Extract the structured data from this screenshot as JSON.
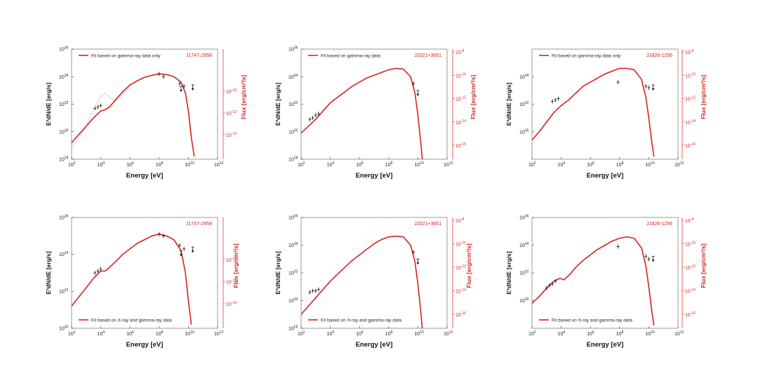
{
  "colors": {
    "fit": "#d8211d",
    "data": "#111111",
    "dashed": "#aaaaaa",
    "axis": "#222222",
    "right_axis": "#d8211d"
  },
  "labels": {
    "xlabel": "Energy [eV]",
    "ylabel": "E²dN/dE [erg/s]",
    "ylabel_right": "Flux [erg/cm²/s]"
  },
  "chart_data": [
    {
      "type": "line",
      "source": "J1747-2958",
      "legend": "Fit based on gamma-ray data only",
      "legend_position": "top",
      "xlim": [
        2,
        12
      ],
      "ylim": [
        28,
        36
      ],
      "left_ticks": [
        28,
        30,
        32,
        34,
        36
      ],
      "right_ticks": [
        -14,
        -12,
        -10
      ],
      "right_offset": 44,
      "fit": [
        [
          2.0,
          29.2
        ],
        [
          2.5,
          29.8
        ],
        [
          3.0,
          30.4
        ],
        [
          3.5,
          31.0
        ],
        [
          4.0,
          31.5
        ],
        [
          4.3,
          31.6
        ],
        [
          4.6,
          31.8
        ],
        [
          5.0,
          32.3
        ],
        [
          5.5,
          32.9
        ],
        [
          6.0,
          33.4
        ],
        [
          6.5,
          33.7
        ],
        [
          7.0,
          33.95
        ],
        [
          7.5,
          34.1
        ],
        [
          8.0,
          34.2
        ],
        [
          8.5,
          34.15
        ],
        [
          9.0,
          34.0
        ],
        [
          9.5,
          33.6
        ],
        [
          9.8,
          32.8
        ],
        [
          10.0,
          31.5
        ],
        [
          10.2,
          29.6
        ],
        [
          10.4,
          28.2
        ]
      ],
      "dashed": [
        [
          2.0,
          28.8
        ],
        [
          2.5,
          29.5
        ],
        [
          3.0,
          30.4
        ],
        [
          3.5,
          31.6
        ],
        [
          4.0,
          32.6
        ],
        [
          4.3,
          32.8
        ],
        [
          4.6,
          32.5
        ],
        [
          5.0,
          32.2
        ],
        [
          5.5,
          32.7
        ],
        [
          6.0,
          33.3
        ]
      ],
      "data_points": [
        [
          3.6,
          31.7
        ],
        [
          3.8,
          31.8
        ],
        [
          4.0,
          31.9
        ],
        [
          8.0,
          34.2
        ],
        [
          8.3,
          34.0
        ],
        [
          9.4,
          33.5
        ],
        [
          9.7,
          33.3
        ]
      ],
      "upper_limits": [
        [
          9.5,
          33.3
        ],
        [
          10.3,
          33.4
        ]
      ]
    },
    {
      "type": "line",
      "source": "J2021+3651",
      "legend": "Fit based on gamma-ray data",
      "legend_position": "top",
      "xlim": [
        2,
        12
      ],
      "ylim": [
        28,
        36
      ],
      "left_ticks": [
        28,
        30,
        32,
        34,
        36
      ],
      "right_ticks": [
        -16,
        -14,
        -12,
        -10,
        -8
      ],
      "right_offset": 44,
      "fit": [
        [
          2.0,
          29.9
        ],
        [
          2.5,
          30.4
        ],
        [
          3.0,
          30.9
        ],
        [
          3.5,
          31.5
        ],
        [
          4.0,
          32.1
        ],
        [
          4.5,
          32.5
        ],
        [
          5.0,
          32.9
        ],
        [
          5.5,
          33.3
        ],
        [
          6.0,
          33.6
        ],
        [
          6.5,
          33.9
        ],
        [
          7.0,
          34.1
        ],
        [
          7.5,
          34.3
        ],
        [
          8.0,
          34.5
        ],
        [
          8.5,
          34.6
        ],
        [
          9.0,
          34.55
        ],
        [
          9.5,
          34.0
        ],
        [
          9.8,
          32.8
        ],
        [
          10.0,
          31.2
        ],
        [
          10.2,
          29.2
        ],
        [
          10.3,
          28.0
        ]
      ],
      "dashed": [],
      "data_points": [
        [
          2.6,
          30.9
        ],
        [
          2.8,
          31.0
        ],
        [
          3.0,
          31.2
        ],
        [
          3.2,
          31.3
        ],
        [
          9.7,
          33.5
        ]
      ],
      "upper_limits": [
        [
          10.0,
          33.0
        ]
      ]
    },
    {
      "type": "line",
      "source": "J1826-1256",
      "legend": "Fit based on gamma-ray data only",
      "legend_position": "top",
      "xlim": [
        2,
        12
      ],
      "ylim": [
        28,
        36
      ],
      "left_ticks": [
        30,
        32,
        34
      ],
      "right_ticks": [
        -16,
        -14,
        -12,
        -10,
        -8
      ],
      "right_offset": 45,
      "fit": [
        [
          2.0,
          29.4
        ],
        [
          2.5,
          30.0
        ],
        [
          3.0,
          30.7
        ],
        [
          3.5,
          31.4
        ],
        [
          4.0,
          31.9
        ],
        [
          4.5,
          32.3
        ],
        [
          5.0,
          32.8
        ],
        [
          5.5,
          33.3
        ],
        [
          6.0,
          33.6
        ],
        [
          6.5,
          33.9
        ],
        [
          7.0,
          34.2
        ],
        [
          7.5,
          34.4
        ],
        [
          8.0,
          34.6
        ],
        [
          8.5,
          34.6
        ],
        [
          9.0,
          34.5
        ],
        [
          9.5,
          33.8
        ],
        [
          9.8,
          32.5
        ],
        [
          10.0,
          31.0
        ],
        [
          10.2,
          29.3
        ],
        [
          10.35,
          28.2
        ]
      ],
      "dashed": [],
      "data_points": [
        [
          3.4,
          32.2
        ],
        [
          3.6,
          32.3
        ],
        [
          3.8,
          32.4
        ],
        [
          7.9,
          33.6
        ],
        [
          9.8,
          33.3
        ],
        [
          10.0,
          33.2
        ]
      ],
      "upper_limits": [
        [
          10.3,
          33.4
        ]
      ]
    },
    {
      "type": "line",
      "source": "J1747-2958",
      "legend": "Fit based on X-ray and gamma-ray data",
      "legend_position": "bottom",
      "xlim": [
        2,
        12
      ],
      "ylim": [
        30,
        36
      ],
      "left_ticks": [
        30,
        32,
        34,
        36
      ],
      "right_ticks": [
        -14,
        -12,
        -10
      ],
      "right_offset": 33,
      "fit": [
        [
          2.0,
          31.2
        ],
        [
          2.5,
          31.7
        ],
        [
          3.0,
          32.2
        ],
        [
          3.5,
          32.7
        ],
        [
          4.0,
          33.1
        ],
        [
          4.3,
          33.1
        ],
        [
          4.6,
          33.3
        ],
        [
          5.0,
          33.6
        ],
        [
          5.5,
          34.0
        ],
        [
          6.0,
          34.3
        ],
        [
          6.5,
          34.6
        ],
        [
          7.0,
          34.8
        ],
        [
          7.5,
          35.0
        ],
        [
          8.0,
          35.1
        ],
        [
          8.5,
          35.0
        ],
        [
          9.0,
          34.8
        ],
        [
          9.5,
          34.2
        ],
        [
          9.8,
          33.0
        ],
        [
          10.0,
          31.5
        ],
        [
          10.2,
          30.2
        ]
      ],
      "dashed": [],
      "data_points": [
        [
          3.6,
          33.0
        ],
        [
          3.8,
          33.1
        ],
        [
          4.0,
          33.2
        ],
        [
          8.0,
          35.1
        ],
        [
          8.3,
          35.0
        ],
        [
          9.4,
          34.5
        ],
        [
          9.7,
          34.3
        ]
      ],
      "upper_limits": [
        [
          9.5,
          34.2
        ],
        [
          10.3,
          34.4
        ]
      ]
    },
    {
      "type": "line",
      "source": "J2021+3651",
      "legend": "Fit based on X-ray and gamma-ray data",
      "legend_position": "bottom",
      "xlim": [
        2,
        12
      ],
      "ylim": [
        28,
        36
      ],
      "left_ticks": [
        28,
        30,
        32,
        34,
        36
      ],
      "right_ticks": [
        -16,
        -14,
        -12,
        -10,
        -8
      ],
      "right_offset": 38,
      "fit": [
        [
          2.0,
          29.0
        ],
        [
          2.5,
          29.6
        ],
        [
          3.0,
          30.2
        ],
        [
          3.5,
          30.8
        ],
        [
          4.0,
          31.4
        ],
        [
          4.5,
          31.9
        ],
        [
          5.0,
          32.4
        ],
        [
          5.5,
          32.9
        ],
        [
          6.0,
          33.3
        ],
        [
          6.5,
          33.7
        ],
        [
          7.0,
          34.1
        ],
        [
          7.5,
          34.4
        ],
        [
          8.0,
          34.6
        ],
        [
          8.5,
          34.65
        ],
        [
          9.0,
          34.6
        ],
        [
          9.5,
          34.0
        ],
        [
          9.8,
          32.8
        ],
        [
          10.0,
          31.2
        ],
        [
          10.2,
          29.2
        ],
        [
          10.3,
          28.0
        ]
      ],
      "dashed": [],
      "data_points": [
        [
          2.6,
          30.6
        ],
        [
          2.8,
          30.7
        ],
        [
          3.0,
          30.7
        ],
        [
          3.2,
          30.8
        ],
        [
          9.7,
          33.5
        ]
      ],
      "upper_limits": [
        [
          10.0,
          33.0
        ]
      ]
    },
    {
      "type": "line",
      "source": "J1826-1256",
      "legend": "Fit based on X-ray and gamma-ray data",
      "legend_position": "bottom",
      "xlim": [
        2,
        12
      ],
      "ylim": [
        28,
        36
      ],
      "left_ticks": [
        30,
        32,
        34,
        36
      ],
      "right_ticks": [
        -16,
        -14,
        -12,
        -10,
        -8
      ],
      "right_offset": 45,
      "fit": [
        [
          2.0,
          29.8
        ],
        [
          2.5,
          30.3
        ],
        [
          3.0,
          30.9
        ],
        [
          3.5,
          31.4
        ],
        [
          3.9,
          31.6
        ],
        [
          4.2,
          31.5
        ],
        [
          4.6,
          31.9
        ],
        [
          5.0,
          32.4
        ],
        [
          5.5,
          32.9
        ],
        [
          6.0,
          33.3
        ],
        [
          6.5,
          33.7
        ],
        [
          7.0,
          34.0
        ],
        [
          7.5,
          34.3
        ],
        [
          8.0,
          34.5
        ],
        [
          8.5,
          34.6
        ],
        [
          9.0,
          34.5
        ],
        [
          9.5,
          33.8
        ],
        [
          9.8,
          32.5
        ],
        [
          10.0,
          31.0
        ],
        [
          10.2,
          29.3
        ],
        [
          10.35,
          28.2
        ]
      ],
      "dashed": [],
      "data_points": [
        [
          3.0,
          30.9
        ],
        [
          3.2,
          31.1
        ],
        [
          3.4,
          31.2
        ],
        [
          3.6,
          31.4
        ],
        [
          7.9,
          33.9
        ],
        [
          9.8,
          33.2
        ],
        [
          10.0,
          33.0
        ]
      ],
      "upper_limits": [
        [
          10.3,
          33.2
        ]
      ]
    }
  ]
}
